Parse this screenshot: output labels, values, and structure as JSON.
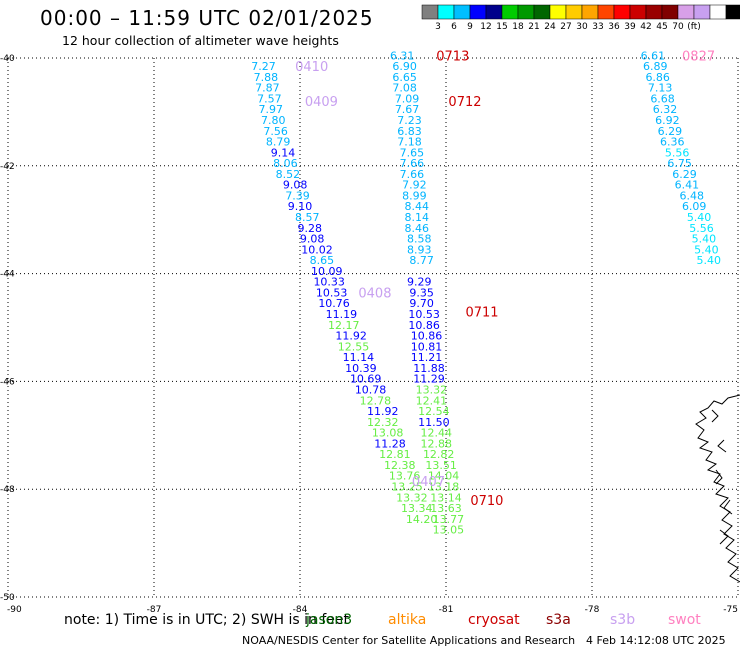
{
  "header": {
    "title": "00:00 – 11:59 UTC 02/01/2025",
    "subtitle": "12 hour collection of altimeter wave heights"
  },
  "legend": {
    "colors": [
      "#808080",
      "#00ffff",
      "#00bfff",
      "#0000ff",
      "#00008b",
      "#00cc00",
      "#009900",
      "#006600",
      "#ffff00",
      "#ffcc00",
      "#ffa500",
      "#ff4500",
      "#ff0000",
      "#cc0000",
      "#990000",
      "#800000",
      "#d8a0e8",
      "#c8a0f0",
      "#ffffff",
      "#000000"
    ],
    "labels": [
      "3",
      "6",
      "9",
      "12",
      "15",
      "18",
      "21",
      "24",
      "27",
      "30",
      "33",
      "36",
      "39",
      "42",
      "45",
      "70",
      "(ft)"
    ]
  },
  "footer": {
    "note": "note:  1) Time is in UTC;  2) SWH is in feet",
    "satellites": [
      {
        "name": "jason3",
        "color": "#006400"
      },
      {
        "name": "altika",
        "color": "#ff8c00"
      },
      {
        "name": "cryosat",
        "color": "#cc0000"
      },
      {
        "name": "s3a",
        "color": "#8b0000"
      },
      {
        "name": "s3b",
        "color": "#c8a0f0"
      },
      {
        "name": "swot",
        "color": "#ff80c0"
      }
    ],
    "credit": "NOAA/NESDIS Center for Satellite Applications and Research",
    "timestamp": "4 Feb 14:12:08 UTC 2025"
  },
  "chart_data": {
    "type": "scatter",
    "title": "00:00 – 11:59 UTC 02/01/2025",
    "xlim": [
      -90,
      -75
    ],
    "ylim": [
      -50,
      -40
    ],
    "x_ticks": [
      "-90",
      "-87",
      "-84",
      "-81",
      "-78",
      "-75"
    ],
    "y_ticks": [
      "-40",
      "-42",
      "-44",
      "-46",
      "-48",
      "-50"
    ],
    "grid": true,
    "units": "ft",
    "time_labels": [
      {
        "text": "0410",
        "x": -84.1,
        "y": -40.15,
        "color": "#c8a0f0"
      },
      {
        "text": "0409",
        "x": -83.9,
        "y": -40.8,
        "color": "#c8a0f0"
      },
      {
        "text": "0408",
        "x": -82.8,
        "y": -44.35,
        "color": "#c8a0f0"
      },
      {
        "text": "0407",
        "x": -81.7,
        "y": -47.85,
        "color": "#c8a0f0"
      },
      {
        "text": "0713",
        "x": -81.2,
        "y": -39.95,
        "color": "#cc0000"
      },
      {
        "text": "0712",
        "x": -80.95,
        "y": -40.8,
        "color": "#cc0000"
      },
      {
        "text": "0711",
        "x": -80.6,
        "y": -44.7,
        "color": "#cc0000"
      },
      {
        "text": "0710",
        "x": -80.5,
        "y": -48.2,
        "color": "#cc0000"
      },
      {
        "text": "0827",
        "x": -76.15,
        "y": -39.95,
        "color": "#ff80c0"
      }
    ],
    "series": [
      {
        "points": [
          {
            "x": -84.75,
            "y": -40.15,
            "v": 7.27
          },
          {
            "x": -84.7,
            "y": -40.35,
            "v": 7.88
          },
          {
            "x": -84.67,
            "y": -40.55,
            "v": 7.87
          },
          {
            "x": -84.63,
            "y": -40.75,
            "v": 7.57
          },
          {
            "x": -84.6,
            "y": -40.95,
            "v": 7.97
          },
          {
            "x": -84.55,
            "y": -41.15,
            "v": 7.8
          },
          {
            "x": -84.5,
            "y": -41.35,
            "v": 7.56
          },
          {
            "x": -84.45,
            "y": -41.55,
            "v": 8.79
          },
          {
            "x": -84.35,
            "y": -41.75,
            "v": 9.14
          },
          {
            "x": -84.3,
            "y": -41.95,
            "v": 8.06
          },
          {
            "x": -84.25,
            "y": -42.15,
            "v": 8.52
          },
          {
            "x": -84.1,
            "y": -42.35,
            "v": 9.08
          },
          {
            "x": -84.05,
            "y": -42.55,
            "v": 7.39
          },
          {
            "x": -84.0,
            "y": -42.75,
            "v": 9.1
          },
          {
            "x": -83.85,
            "y": -42.95,
            "v": 8.57
          },
          {
            "x": -83.8,
            "y": -43.15,
            "v": 9.28
          },
          {
            "x": -83.75,
            "y": -43.35,
            "v": 9.08
          },
          {
            "x": -83.65,
            "y": -43.55,
            "v": 10.02
          },
          {
            "x": -83.55,
            "y": -43.75,
            "v": 8.65
          },
          {
            "x": -83.45,
            "y": -43.95,
            "v": 10.09
          },
          {
            "x": -83.4,
            "y": -44.15,
            "v": 10.33
          },
          {
            "x": -83.35,
            "y": -44.35,
            "v": 10.53
          },
          {
            "x": -83.3,
            "y": -44.55,
            "v": 10.76
          },
          {
            "x": -83.15,
            "y": -44.75,
            "v": 11.19
          },
          {
            "x": -83.1,
            "y": -44.95,
            "v": 12.17
          },
          {
            "x": -82.95,
            "y": -45.15,
            "v": 11.92
          },
          {
            "x": -82.9,
            "y": -45.35,
            "v": 12.55
          },
          {
            "x": -82.8,
            "y": -45.55,
            "v": 11.14
          },
          {
            "x": -82.75,
            "y": -45.75,
            "v": 10.39
          },
          {
            "x": -82.65,
            "y": -45.95,
            "v": 10.69
          },
          {
            "x": -82.55,
            "y": -46.15,
            "v": 10.78
          },
          {
            "x": -82.45,
            "y": -46.35,
            "v": 12.78
          },
          {
            "x": -82.3,
            "y": -46.55,
            "v": 11.92
          },
          {
            "x": -82.3,
            "y": -46.75,
            "v": 12.32
          },
          {
            "x": -82.2,
            "y": -46.95,
            "v": 13.08
          },
          {
            "x": -82.15,
            "y": -47.15,
            "v": 11.28
          },
          {
            "x": -82.05,
            "y": -47.35,
            "v": 12.81
          },
          {
            "x": -81.95,
            "y": -47.55,
            "v": 12.38
          },
          {
            "x": -81.85,
            "y": -47.75,
            "v": 13.76
          },
          {
            "x": -81.8,
            "y": -47.95,
            "v": 13.25
          },
          {
            "x": -81.7,
            "y": -48.15,
            "v": 13.32
          },
          {
            "x": -81.6,
            "y": -48.35,
            "v": 13.34
          },
          {
            "x": -81.5,
            "y": -48.55,
            "v": 14.2
          }
        ]
      },
      {
        "points": [
          {
            "x": -81.9,
            "y": -39.95,
            "v": 6.31
          },
          {
            "x": -81.85,
            "y": -40.15,
            "v": 6.9
          },
          {
            "x": -81.85,
            "y": -40.35,
            "v": 6.65
          },
          {
            "x": -81.85,
            "y": -40.55,
            "v": 7.08
          },
          {
            "x": -81.8,
            "y": -40.75,
            "v": 7.09
          },
          {
            "x": -81.8,
            "y": -40.95,
            "v": 7.67
          },
          {
            "x": -81.75,
            "y": -41.15,
            "v": 7.23
          },
          {
            "x": -81.75,
            "y": -41.35,
            "v": 6.83
          },
          {
            "x": -81.75,
            "y": -41.55,
            "v": 7.18
          },
          {
            "x": -81.7,
            "y": -41.75,
            "v": 7.65
          },
          {
            "x": -81.7,
            "y": -41.95,
            "v": 7.66
          },
          {
            "x": -81.7,
            "y": -42.15,
            "v": 7.66
          },
          {
            "x": -81.65,
            "y": -42.35,
            "v": 7.92
          },
          {
            "x": -81.65,
            "y": -42.55,
            "v": 8.99
          },
          {
            "x": -81.6,
            "y": -42.75,
            "v": 8.44
          },
          {
            "x": -81.6,
            "y": -42.95,
            "v": 8.14
          },
          {
            "x": -81.6,
            "y": -43.15,
            "v": 8.46
          },
          {
            "x": -81.55,
            "y": -43.35,
            "v": 8.58
          },
          {
            "x": -81.55,
            "y": -43.55,
            "v": 8.93
          },
          {
            "x": -81.5,
            "y": -43.75,
            "v": 8.77
          },
          {
            "x": -81.55,
            "y": -44.15,
            "v": 9.29
          },
          {
            "x": -81.5,
            "y": -44.35,
            "v": 9.35
          },
          {
            "x": -81.5,
            "y": -44.55,
            "v": 9.7
          },
          {
            "x": -81.45,
            "y": -44.75,
            "v": 10.53
          },
          {
            "x": -81.45,
            "y": -44.95,
            "v": 10.86
          },
          {
            "x": -81.4,
            "y": -45.15,
            "v": 10.86
          },
          {
            "x": -81.4,
            "y": -45.35,
            "v": 10.81
          },
          {
            "x": -81.4,
            "y": -45.55,
            "v": 11.21
          },
          {
            "x": -81.35,
            "y": -45.75,
            "v": 11.88
          },
          {
            "x": -81.35,
            "y": -45.95,
            "v": 11.29
          },
          {
            "x": -81.3,
            "y": -46.15,
            "v": 13.32
          },
          {
            "x": -81.3,
            "y": -46.35,
            "v": 12.41
          },
          {
            "x": -81.25,
            "y": -46.55,
            "v": 12.54
          },
          {
            "x": -81.25,
            "y": -46.75,
            "v": 11.5
          },
          {
            "x": -81.2,
            "y": -46.95,
            "v": 12.44
          },
          {
            "x": -81.2,
            "y": -47.15,
            "v": 12.88
          },
          {
            "x": -81.15,
            "y": -47.35,
            "v": 12.82
          },
          {
            "x": -81.1,
            "y": -47.55,
            "v": 13.51
          },
          {
            "x": -81.05,
            "y": -47.75,
            "v": 14.04
          },
          {
            "x": -81.05,
            "y": -47.95,
            "v": 13.18
          },
          {
            "x": -81.0,
            "y": -48.15,
            "v": 13.14
          },
          {
            "x": -81.0,
            "y": -48.35,
            "v": 13.63
          },
          {
            "x": -80.95,
            "y": -48.55,
            "v": 13.77
          },
          {
            "x": -80.95,
            "y": -48.75,
            "v": 13.05
          }
        ]
      },
      {
        "points": [
          {
            "x": -76.75,
            "y": -39.95,
            "v": 6.61
          },
          {
            "x": -76.7,
            "y": -40.15,
            "v": 6.89
          },
          {
            "x": -76.65,
            "y": -40.35,
            "v": 6.86
          },
          {
            "x": -76.6,
            "y": -40.55,
            "v": 7.13
          },
          {
            "x": -76.55,
            "y": -40.75,
            "v": 6.68
          },
          {
            "x": -76.5,
            "y": -40.95,
            "v": 6.32
          },
          {
            "x": -76.45,
            "y": -41.15,
            "v": 6.92
          },
          {
            "x": -76.4,
            "y": -41.35,
            "v": 6.29
          },
          {
            "x": -76.35,
            "y": -41.55,
            "v": 6.36
          },
          {
            "x": -76.25,
            "y": -41.75,
            "v": 5.56
          },
          {
            "x": -76.2,
            "y": -41.95,
            "v": 6.75
          },
          {
            "x": -76.1,
            "y": -42.15,
            "v": 6.29
          },
          {
            "x": -76.05,
            "y": -42.35,
            "v": 6.41
          },
          {
            "x": -75.95,
            "y": -42.55,
            "v": 6.48
          },
          {
            "x": -75.9,
            "y": -42.75,
            "v": 6.09
          },
          {
            "x": -75.8,
            "y": -42.95,
            "v": 5.4
          },
          {
            "x": -75.75,
            "y": -43.15,
            "v": 5.56
          },
          {
            "x": -75.7,
            "y": -43.35,
            "v": 5.4
          },
          {
            "x": -75.65,
            "y": -43.55,
            "v": 5.4
          },
          {
            "x": -75.6,
            "y": -43.75,
            "v": 5.4
          }
        ]
      }
    ]
  }
}
